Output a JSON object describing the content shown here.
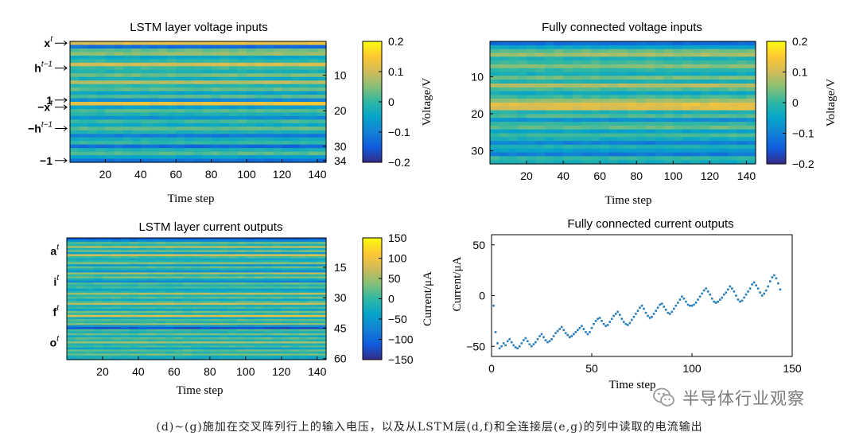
{
  "chart_data": [
    {
      "type": "heatmap",
      "title": "LSTM layer voltage inputs",
      "xlabel": "Time step",
      "x_ticks": [
        "20",
        "40",
        "60",
        "80",
        "100",
        "120",
        "140"
      ],
      "x_tick_values": [
        20,
        40,
        60,
        80,
        100,
        120,
        140
      ],
      "xlim": [
        0,
        145
      ],
      "ylim": [
        1,
        34
      ],
      "y_ticks_right": [
        "10",
        "20",
        "30",
        "34"
      ],
      "y_tick_values": [
        10,
        20,
        30,
        34
      ],
      "row_labels": [
        {
          "base": "x",
          "sup": "t",
          "row": 1
        },
        {
          "base": "h",
          "sup": "t−1",
          "row": 8
        },
        {
          "base": "1",
          "sup": "",
          "row": 17
        },
        {
          "base": "−x",
          "sup": "t",
          "row": 19
        },
        {
          "base": "−h",
          "sup": "t−1",
          "row": 25
        },
        {
          "base": "−1",
          "sup": "",
          "row": 34
        }
      ],
      "colorbar": {
        "label": "Voltage/V",
        "ticks": [
          "0.2",
          "0.1",
          "0",
          "−0.1",
          "−0.2"
        ],
        "tick_values": [
          0.2,
          0.1,
          0,
          -0.1,
          -0.2
        ],
        "range": [
          -0.2,
          0.2
        ]
      },
      "row_values": [
        0.12,
        -0.13,
        0.03,
        0.06,
        -0.04,
        0.0,
        0.1,
        0.01,
        -0.02,
        0.04,
        -0.03,
        0.08,
        -0.01,
        0.03,
        -0.05,
        0.02,
        -0.09,
        0.13,
        -0.06,
        0.02,
        -0.02,
        -0.08,
        0.01,
        -0.04,
        0.03,
        -0.02,
        -0.11,
        -0.03,
        0.0,
        -0.13,
        -0.02,
        0.02,
        -0.05,
        -0.12
      ]
    },
    {
      "type": "heatmap",
      "title": "Fully connected voltage inputs",
      "xlabel": "Time step",
      "x_ticks": [
        "20",
        "40",
        "60",
        "80",
        "100",
        "120",
        "140"
      ],
      "x_tick_values": [
        20,
        40,
        60,
        80,
        100,
        120,
        140
      ],
      "xlim": [
        0,
        145
      ],
      "ylim": [
        1,
        33
      ],
      "y_ticks_left": [
        "10",
        "20",
        "30"
      ],
      "y_tick_values": [
        10,
        20,
        30
      ],
      "colorbar": {
        "label": "Voltage/V",
        "ticks": [
          "0.2",
          "0.1",
          "0",
          "−0.1",
          "−0.2"
        ],
        "tick_values": [
          0.2,
          0.1,
          0,
          -0.1,
          -0.2
        ],
        "range": [
          -0.2,
          0.2
        ]
      },
      "row_values": [
        -0.13,
        -0.05,
        0.03,
        0.07,
        -0.02,
        0.01,
        0.05,
        0.0,
        -0.03,
        0.04,
        -0.02,
        0.08,
        0.02,
        -0.04,
        0.01,
        0.06,
        0.12,
        0.11,
        -0.02,
        0.02,
        -0.08,
        0.0,
        0.03,
        -0.05,
        0.01,
        -0.03,
        -0.1,
        -0.02,
        -0.06,
        -0.11,
        0.0,
        -0.03
      ]
    },
    {
      "type": "heatmap",
      "title": "LSTM layer current outputs",
      "xlabel": "Time step",
      "x_ticks": [
        "20",
        "40",
        "60",
        "80",
        "100",
        "120",
        "140"
      ],
      "x_tick_values": [
        20,
        40,
        60,
        80,
        100,
        120,
        140
      ],
      "xlim": [
        0,
        145
      ],
      "ylim": [
        1,
        60
      ],
      "y_ticks_right": [
        "15",
        "30",
        "45",
        "60"
      ],
      "y_tick_values": [
        15,
        30,
        45,
        60
      ],
      "row_labels": [
        {
          "base": "a",
          "sup": "t",
          "row": 7
        },
        {
          "base": "i",
          "sup": "t",
          "row": 22
        },
        {
          "base": "f",
          "sup": "t",
          "row": 37
        },
        {
          "base": "o",
          "sup": "t",
          "row": 52
        }
      ],
      "colorbar": {
        "label": "Current/μA",
        "ticks": [
          "150",
          "100",
          "50",
          "0",
          "−50",
          "−100",
          "−150"
        ],
        "tick_values": [
          150,
          100,
          50,
          0,
          -50,
          -100,
          -150
        ],
        "range": [
          -150,
          150
        ]
      },
      "row_values": [
        -110,
        -60,
        20,
        -10,
        60,
        -20,
        30,
        -40,
        80,
        10,
        -30,
        -10,
        40,
        -50,
        20,
        -20,
        -60,
        50,
        -10,
        30,
        -30,
        -70,
        20,
        -10,
        10,
        -40,
        -20,
        60,
        -10,
        20,
        -30,
        10,
        70,
        -20,
        10,
        -40,
        30,
        -10,
        90,
        -30,
        20,
        -10,
        40,
        -60,
        -120,
        10,
        -20,
        30,
        -30,
        20,
        -10,
        50,
        -20,
        10,
        -40,
        20,
        -10,
        30,
        -20,
        -30
      ]
    },
    {
      "type": "scatter",
      "title": "Fully connected current outputs",
      "xlabel": "Time step",
      "ylabel": "Current/μA",
      "xlim": [
        0,
        150
      ],
      "ylim": [
        -60,
        60
      ],
      "x_ticks": [
        "0",
        "50",
        "100",
        "150"
      ],
      "x_tick_values": [
        0,
        50,
        100,
        150
      ],
      "y_ticks": [
        "50",
        "0",
        "−50"
      ],
      "y_tick_values": [
        50,
        0,
        -50
      ],
      "points_x": [
        1,
        2,
        3,
        4,
        5,
        6,
        7,
        8,
        9,
        10,
        11,
        12,
        13,
        14,
        15,
        16,
        17,
        18,
        19,
        20,
        21,
        22,
        23,
        24,
        25,
        26,
        27,
        28,
        29,
        30,
        31,
        32,
        33,
        34,
        35,
        36,
        37,
        38,
        39,
        40,
        41,
        42,
        43,
        44,
        45,
        46,
        47,
        48,
        49,
        50,
        51,
        52,
        53,
        54,
        55,
        56,
        57,
        58,
        59,
        60,
        61,
        62,
        63,
        64,
        65,
        66,
        67,
        68,
        69,
        70,
        71,
        72,
        73,
        74,
        75,
        76,
        77,
        78,
        79,
        80,
        81,
        82,
        83,
        84,
        85,
        86,
        87,
        88,
        89,
        90,
        91,
        92,
        93,
        94,
        95,
        96,
        97,
        98,
        99,
        100,
        101,
        102,
        103,
        104,
        105,
        106,
        107,
        108,
        109,
        110,
        111,
        112,
        113,
        114,
        115,
        116,
        117,
        118,
        119,
        120,
        121,
        122,
        123,
        124,
        125,
        126,
        127,
        128,
        129,
        130,
        131,
        132,
        133,
        134,
        135,
        136,
        137,
        138,
        139,
        140,
        141,
        142,
        143,
        144
      ],
      "points_y": [
        -10,
        -36,
        -47,
        -52,
        -50,
        -47,
        -49,
        -45,
        -43,
        -46,
        -49,
        -51,
        -52,
        -50,
        -47,
        -44,
        -42,
        -45,
        -48,
        -50,
        -48,
        -46,
        -43,
        -40,
        -38,
        -41,
        -44,
        -46,
        -45,
        -43,
        -40,
        -37,
        -35,
        -33,
        -31,
        -34,
        -37,
        -39,
        -41,
        -40,
        -38,
        -36,
        -34,
        -32,
        -30,
        -33,
        -36,
        -38,
        -36,
        -32,
        -28,
        -25,
        -23,
        -22,
        -25,
        -28,
        -30,
        -29,
        -26,
        -23,
        -20,
        -18,
        -16,
        -19,
        -23,
        -26,
        -28,
        -29,
        -27,
        -24,
        -21,
        -18,
        -15,
        -12,
        -10,
        -13,
        -17,
        -20,
        -22,
        -21,
        -18,
        -15,
        -12,
        -9,
        -8,
        -11,
        -14,
        -17,
        -18,
        -16,
        -13,
        -10,
        -7,
        -4,
        -1,
        -3,
        -6,
        -9,
        -10,
        -10,
        -9,
        -7,
        -4,
        -1,
        2,
        5,
        7,
        4,
        1,
        -3,
        -6,
        -7,
        -6,
        -4,
        -2,
        1,
        3,
        6,
        9,
        7,
        4,
        0,
        -4,
        -6,
        -5,
        -2,
        1,
        4,
        7,
        11,
        13,
        10,
        7,
        3,
        0,
        2,
        5,
        9,
        14,
        18,
        20,
        17,
        12,
        6
      ]
    }
  ],
  "watermark": {
    "text": "半导体行业观察"
  },
  "caption": "(d)~(g)施加在交叉阵列行上的输入电压，以及从LSTM层(d,f)和全连接层(e,g)的列中读取的电流输出"
}
